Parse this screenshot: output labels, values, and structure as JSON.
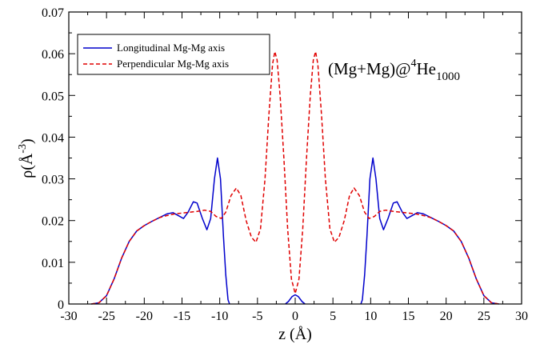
{
  "chart_data": {
    "type": "line",
    "xlabel": "z (Å)",
    "ylabel": {
      "base": "ρ(",
      "unit": "Å",
      "sup": "-3",
      "close": ")"
    },
    "xlim": [
      -30,
      30
    ],
    "ylim": [
      0,
      0.07
    ],
    "xticks": [
      -30,
      -25,
      -20,
      -15,
      -10,
      -5,
      0,
      5,
      10,
      15,
      20,
      25,
      30
    ],
    "yticks": [
      0,
      0.01,
      0.02,
      0.03,
      0.04,
      0.05,
      0.06,
      0.07
    ],
    "ytick_labels": [
      "0",
      "0.01",
      "0.02",
      "0.03",
      "0.04",
      "0.05",
      "0.06",
      "0.07"
    ],
    "grid": false,
    "legend_position": "top-left",
    "annotation": {
      "main": "(Mg+Mg)@",
      "sup": "4",
      "base": "He",
      "sub": "1000"
    },
    "series": [
      {
        "name": "Longitudinal  Mg-Mg axis",
        "color": "#0000cc",
        "dash": "solid",
        "segments": [
          [
            [
              -27,
              0
            ],
            [
              -26,
              0.0003
            ],
            [
              -25,
              0.002
            ],
            [
              -24,
              0.006
            ],
            [
              -23,
              0.011
            ],
            [
              -22,
              0.015
            ],
            [
              -21,
              0.0175
            ],
            [
              -20,
              0.0188
            ],
            [
              -19,
              0.0198
            ],
            [
              -18,
              0.0207
            ],
            [
              -17,
              0.0216
            ],
            [
              -16.2,
              0.0219
            ],
            [
              -15.5,
              0.0212
            ],
            [
              -14.8,
              0.0205
            ],
            [
              -14.2,
              0.022
            ],
            [
              -13.5,
              0.0245
            ],
            [
              -13,
              0.0242
            ],
            [
              -12.3,
              0.0205
            ],
            [
              -11.7,
              0.0178
            ],
            [
              -11.2,
              0.0205
            ],
            [
              -10.7,
              0.03
            ],
            [
              -10.3,
              0.035
            ],
            [
              -9.9,
              0.03
            ],
            [
              -9.5,
              0.016
            ],
            [
              -9.2,
              0.007
            ],
            [
              -8.9,
              0.001
            ],
            [
              -8.7,
              0
            ]
          ],
          [
            [
              -1.3,
              0
            ],
            [
              -0.9,
              0.0006
            ],
            [
              -0.4,
              0.0018
            ],
            [
              0,
              0.0022
            ],
            [
              0.4,
              0.0018
            ],
            [
              0.9,
              0.0006
            ],
            [
              1.3,
              0
            ]
          ],
          [
            [
              8.7,
              0
            ],
            [
              8.9,
              0.001
            ],
            [
              9.2,
              0.007
            ],
            [
              9.5,
              0.016
            ],
            [
              9.9,
              0.03
            ],
            [
              10.3,
              0.035
            ],
            [
              10.7,
              0.03
            ],
            [
              11.2,
              0.0205
            ],
            [
              11.7,
              0.0178
            ],
            [
              12.3,
              0.0205
            ],
            [
              13,
              0.0242
            ],
            [
              13.5,
              0.0245
            ],
            [
              14.2,
              0.022
            ],
            [
              14.8,
              0.0205
            ],
            [
              15.5,
              0.0212
            ],
            [
              16.2,
              0.0219
            ],
            [
              17,
              0.0216
            ],
            [
              18,
              0.0207
            ],
            [
              19,
              0.0198
            ],
            [
              20,
              0.0188
            ],
            [
              21,
              0.0175
            ],
            [
              22,
              0.015
            ],
            [
              23,
              0.011
            ],
            [
              24,
              0.006
            ],
            [
              25,
              0.002
            ],
            [
              26,
              0.0003
            ],
            [
              27,
              0
            ]
          ]
        ]
      },
      {
        "name": "Perpendicular Mg-Mg axis",
        "color": "#e00000",
        "dash": "dashed",
        "segments": [
          [
            [
              -27,
              0
            ],
            [
              -26,
              0.0003
            ],
            [
              -25,
              0.002
            ],
            [
              -24,
              0.006
            ],
            [
              -23,
              0.011
            ],
            [
              -22,
              0.015
            ],
            [
              -21,
              0.0175
            ],
            [
              -20,
              0.0188
            ],
            [
              -19,
              0.0198
            ],
            [
              -18,
              0.0207
            ],
            [
              -17,
              0.0212
            ],
            [
              -16,
              0.0216
            ],
            [
              -15,
              0.0218
            ],
            [
              -14,
              0.022
            ],
            [
              -13,
              0.0222
            ],
            [
              -12,
              0.0225
            ],
            [
              -11.2,
              0.0222
            ],
            [
              -10.5,
              0.021
            ],
            [
              -9.8,
              0.0205
            ],
            [
              -9.2,
              0.022
            ],
            [
              -8.5,
              0.026
            ],
            [
              -7.8,
              0.0278
            ],
            [
              -7.2,
              0.026
            ],
            [
              -6.5,
              0.02
            ],
            [
              -5.8,
              0.016
            ],
            [
              -5.2,
              0.0148
            ],
            [
              -4.6,
              0.018
            ],
            [
              -4,
              0.03
            ],
            [
              -3.5,
              0.045
            ],
            [
              -3,
              0.0575
            ],
            [
              -2.7,
              0.0605
            ],
            [
              -2.4,
              0.0585
            ],
            [
              -2,
              0.05
            ],
            [
              -1.5,
              0.035
            ],
            [
              -1,
              0.018
            ],
            [
              -0.5,
              0.006
            ],
            [
              0,
              0.0025
            ],
            [
              0.5,
              0.006
            ],
            [
              1,
              0.018
            ],
            [
              1.5,
              0.035
            ],
            [
              2,
              0.05
            ],
            [
              2.4,
              0.0585
            ],
            [
              2.7,
              0.0605
            ],
            [
              3,
              0.0575
            ],
            [
              3.5,
              0.045
            ],
            [
              4,
              0.03
            ],
            [
              4.6,
              0.018
            ],
            [
              5.2,
              0.0148
            ],
            [
              5.8,
              0.016
            ],
            [
              6.5,
              0.02
            ],
            [
              7.2,
              0.026
            ],
            [
              7.8,
              0.0278
            ],
            [
              8.5,
              0.026
            ],
            [
              9.2,
              0.022
            ],
            [
              9.8,
              0.0205
            ],
            [
              10.5,
              0.021
            ],
            [
              11.2,
              0.0222
            ],
            [
              12,
              0.0225
            ],
            [
              13,
              0.0222
            ],
            [
              14,
              0.022
            ],
            [
              15,
              0.0218
            ],
            [
              16,
              0.0216
            ],
            [
              17,
              0.0212
            ],
            [
              18,
              0.0207
            ],
            [
              19,
              0.0198
            ],
            [
              20,
              0.0188
            ],
            [
              21,
              0.0175
            ],
            [
              22,
              0.015
            ],
            [
              23,
              0.011
            ],
            [
              24,
              0.006
            ],
            [
              25,
              0.002
            ],
            [
              26,
              0.0003
            ],
            [
              27,
              0
            ]
          ]
        ]
      }
    ]
  }
}
